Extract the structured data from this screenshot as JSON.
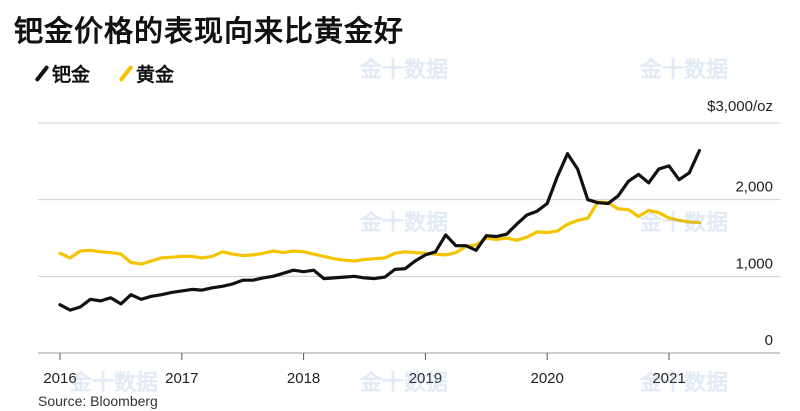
{
  "title": "钯金价格的表现向来比黄金好",
  "source": "Source: Bloomberg",
  "watermark": "金十数据",
  "chart_data": {
    "type": "line",
    "title": "钯金价格的表现向来比黄金好",
    "x_start": 2016.0,
    "x_step": 0.08333,
    "xlim": [
      2016.0,
      2021.6
    ],
    "ylim": [
      0,
      3000
    ],
    "y_unit_label": "$3,000/oz",
    "y_ticks": [
      {
        "value": 0,
        "label": "0"
      },
      {
        "value": 1000,
        "label": "1,000"
      },
      {
        "value": 2000,
        "label": "2,000"
      },
      {
        "value": 3000,
        "label": "$3,000/oz"
      }
    ],
    "x_ticks": [
      {
        "value": 2016,
        "label": "2016"
      },
      {
        "value": 2017,
        "label": "2017"
      },
      {
        "value": 2018,
        "label": "2018"
      },
      {
        "value": 2019,
        "label": "2019"
      },
      {
        "value": 2020,
        "label": "2020"
      },
      {
        "value": 2021,
        "label": "2021"
      }
    ],
    "legend_placement": "top-left",
    "grid": "horizontal",
    "series": [
      {
        "name": "钯金",
        "color": "#111111",
        "values": [
          630,
          560,
          600,
          700,
          680,
          720,
          640,
          760,
          700,
          740,
          760,
          790,
          810,
          830,
          820,
          850,
          870,
          900,
          950,
          950,
          980,
          1000,
          1040,
          1080,
          1060,
          1080,
          970,
          980,
          990,
          1000,
          980,
          970,
          990,
          1090,
          1100,
          1200,
          1280,
          1320,
          1540,
          1400,
          1400,
          1340,
          1530,
          1520,
          1550,
          1680,
          1800,
          1850,
          1950,
          2300,
          2600,
          2400,
          2000,
          1960,
          1950,
          2050,
          2240,
          2330,
          2220,
          2400,
          2440,
          2260,
          2350,
          2640
        ]
      },
      {
        "name": "黄金",
        "color": "#f5c400",
        "values": [
          1300,
          1240,
          1330,
          1340,
          1320,
          1310,
          1290,
          1180,
          1160,
          1200,
          1240,
          1250,
          1260,
          1260,
          1240,
          1260,
          1320,
          1290,
          1270,
          1280,
          1300,
          1330,
          1310,
          1330,
          1320,
          1290,
          1260,
          1230,
          1210,
          1200,
          1220,
          1230,
          1240,
          1300,
          1320,
          1310,
          1300,
          1290,
          1280,
          1310,
          1390,
          1410,
          1500,
          1480,
          1500,
          1470,
          1510,
          1580,
          1570,
          1590,
          1680,
          1730,
          1760,
          1970,
          1960,
          1880,
          1870,
          1780,
          1860,
          1830,
          1760,
          1730,
          1710,
          1700
        ]
      }
    ]
  }
}
